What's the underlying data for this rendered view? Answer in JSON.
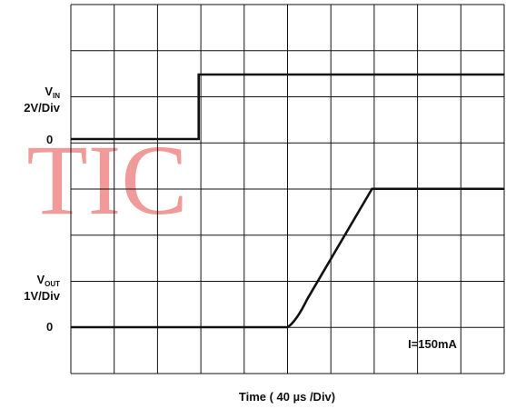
{
  "chart_data": {
    "type": "line",
    "xlabel": "Time ( 40 µs /Div)",
    "x_div_unit_us": 40,
    "x_divisions": 10,
    "y_divisions": 8,
    "channels": {
      "vin": {
        "label_main": "V",
        "label_sub": "IN",
        "scale": "2V/Div",
        "zero_label": "0",
        "points_div": [
          [
            0,
            0
          ],
          [
            2.95,
            0
          ],
          [
            2.95,
            1.4
          ],
          [
            10,
            1.4
          ]
        ]
      },
      "vout": {
        "label_main": "V",
        "label_sub": "OUT",
        "scale": "1V/Div",
        "zero_label": "0",
        "points_div": [
          [
            0,
            0
          ],
          [
            5.0,
            0
          ],
          [
            5.2,
            0.12
          ],
          [
            5.45,
            0.6
          ],
          [
            6.95,
            3.0
          ],
          [
            10,
            3.0
          ]
        ]
      }
    },
    "annotation": "I=150mA",
    "watermark": "TIC",
    "colors": {
      "trace": "#111111",
      "grid": "#111111",
      "watermark": "#f19a9a"
    }
  }
}
